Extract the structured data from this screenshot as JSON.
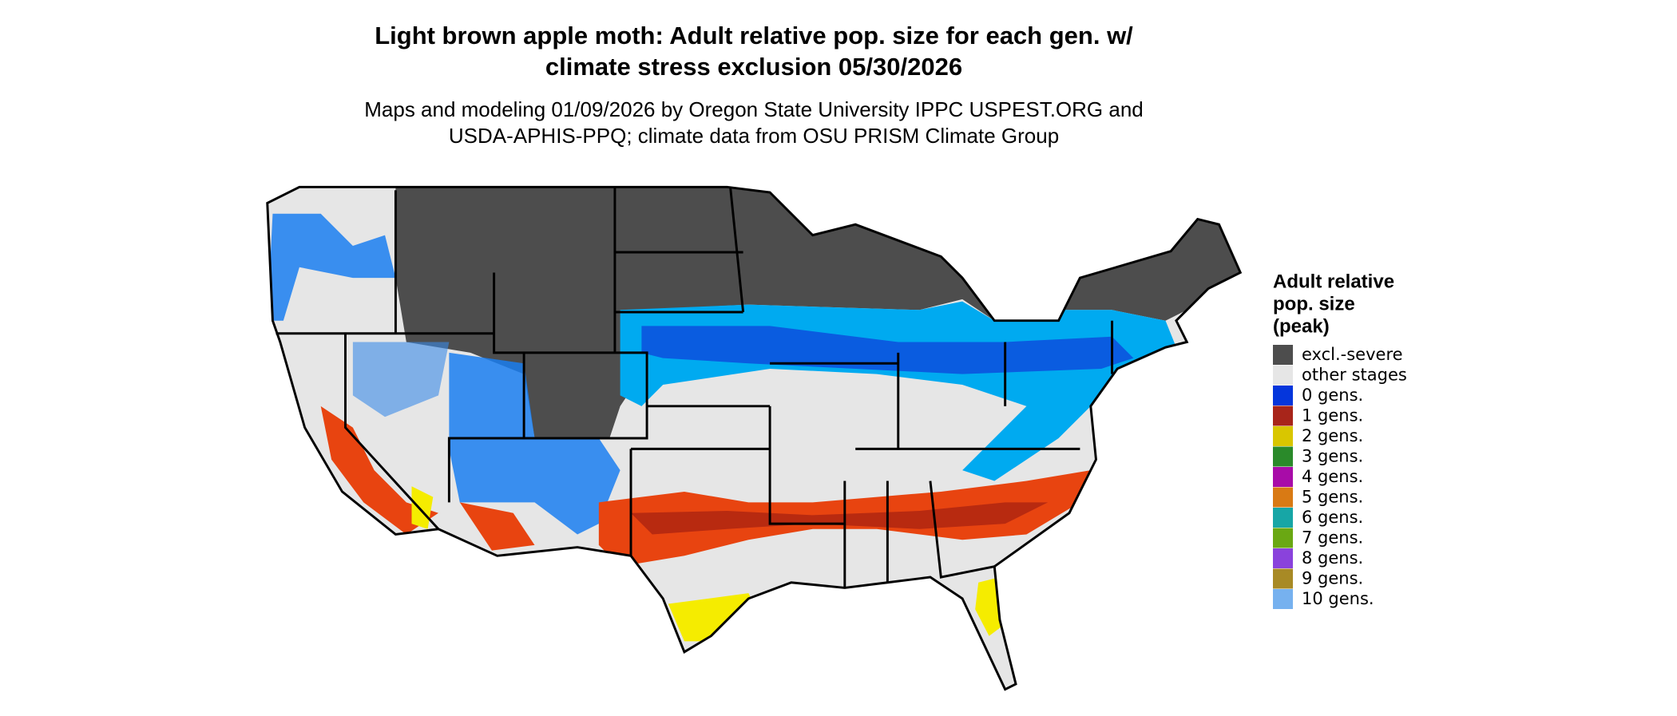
{
  "title": [
    "Light brown apple moth: Adult relative pop. size for each gen. w/",
    "climate stress exclusion 05/30/2026"
  ],
  "subtitle": [
    "Maps and modeling 01/09/2026 by Oregon State University IPPC USPEST.ORG and",
    "USDA-APHIS-PPQ; climate data from OSU PRISM Climate Group"
  ],
  "legend": {
    "title": [
      "Adult relative",
      "pop. size",
      "(peak)"
    ],
    "items": [
      {
        "name": "excl.-severe",
        "color": "#4d4d4d"
      },
      {
        "name": "other stages",
        "color": "#e6e6e6"
      },
      {
        "name": "0 gens.",
        "color": "#0536dc"
      },
      {
        "name": "1 gens.",
        "color": "#a8251a"
      },
      {
        "name": "2 gens.",
        "color": "#d9c600"
      },
      {
        "name": "3 gens.",
        "color": "#2a8a2a"
      },
      {
        "name": "4 gens.",
        "color": "#a80ca8"
      },
      {
        "name": "5 gens.",
        "color": "#d97a14"
      },
      {
        "name": "6 gens.",
        "color": "#17a6a6"
      },
      {
        "name": "7 gens.",
        "color": "#6aa813"
      },
      {
        "name": "8 gens.",
        "color": "#8a42dc"
      },
      {
        "name": "9 gens.",
        "color": "#a88a25"
      },
      {
        "name": "10 gens.",
        "color": "#76b1ef"
      }
    ]
  }
}
